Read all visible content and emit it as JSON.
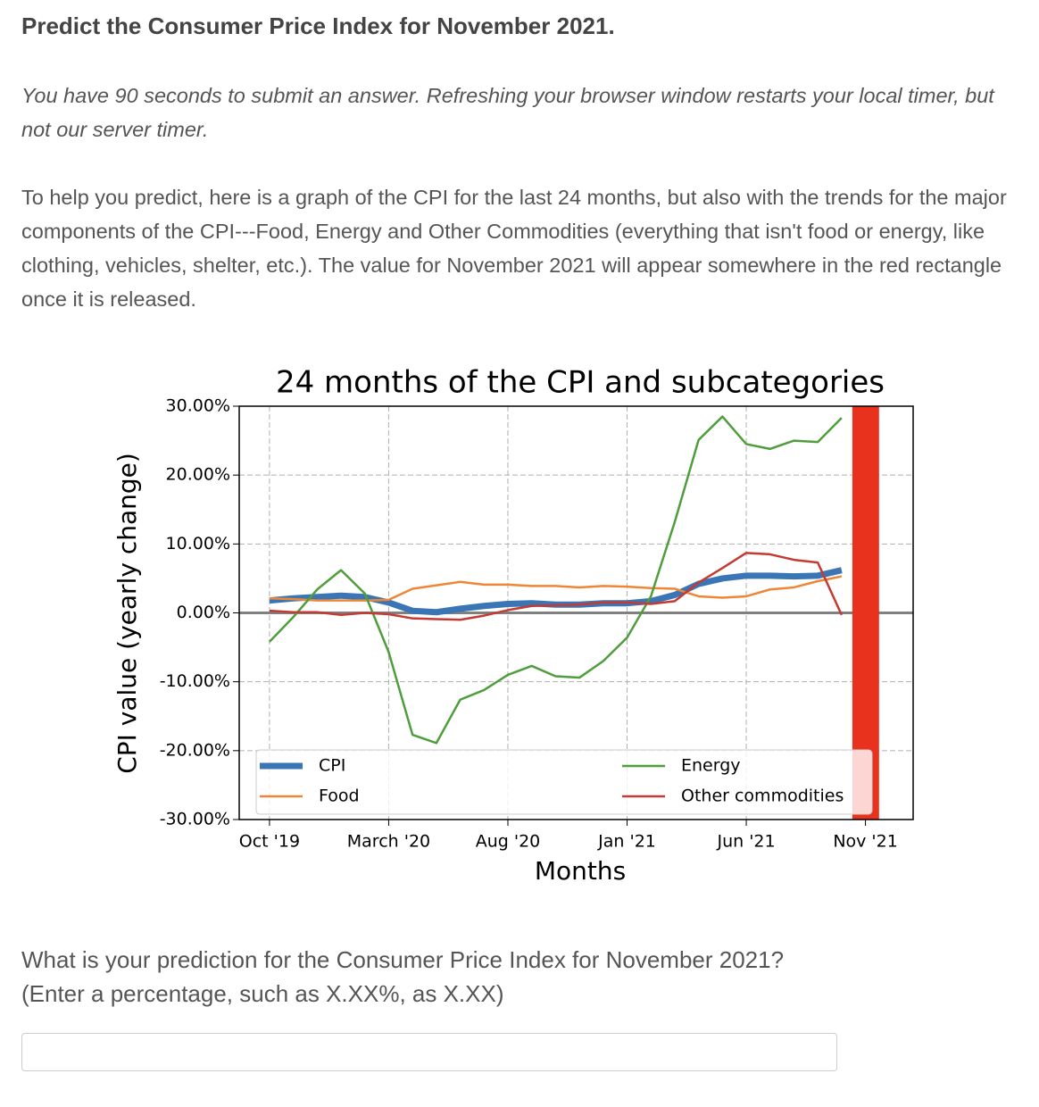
{
  "header": {
    "title": "Predict the Consumer Price Index for November 2021."
  },
  "instructions": "You have 90 seconds to submit an answer. Refreshing your browser window restarts your local timer, but not our server timer.",
  "description": "To help you predict, here is a graph of the CPI for the last 24 months, but also with the trends for the major components of the CPI---Food, Energy and Other Commodities (everything that isn't food or energy, like clothing, vehicles, shelter, etc.). The value for November 2021 will appear somewhere in the red rectangle once it is released.",
  "question": {
    "line1": "What is your prediction for the Consumer Price Index for November 2021?",
    "line2": "(Enter a percentage, such as X.XX%, as X.XX)"
  },
  "chart_data": {
    "type": "line",
    "title": "24 months of the CPI and subcategories",
    "x_label": "Months",
    "y_label": "CPI value (yearly change)",
    "x": [
      0,
      1,
      2,
      3,
      4,
      5,
      6,
      7,
      8,
      9,
      10,
      11,
      12,
      13,
      14,
      15,
      16,
      17,
      18,
      19,
      20,
      21,
      22,
      23,
      24
    ],
    "xlim": [
      -1.27,
      27
    ],
    "xticks": [
      {
        "value": 0,
        "label": "Oct '19"
      },
      {
        "value": 5,
        "label": "March '20"
      },
      {
        "value": 10,
        "label": "Aug '20"
      },
      {
        "value": 15,
        "label": "Jan '21"
      },
      {
        "value": 20,
        "label": "Jun '21"
      },
      {
        "value": 25,
        "label": "Nov '21"
      }
    ],
    "ylim": [
      -30,
      30
    ],
    "yticks": [
      {
        "value": -30,
        "label": "-30.00%"
      },
      {
        "value": -20,
        "label": "-20.00%"
      },
      {
        "value": -10,
        "label": "-10.00%"
      },
      {
        "value": 0,
        "label": "0.00%"
      },
      {
        "value": 10,
        "label": "10.00%"
      },
      {
        "value": 20,
        "label": "20.00%"
      },
      {
        "value": 30,
        "label": "30.00%"
      }
    ],
    "grid": true,
    "legend": "lower center",
    "highlight": {
      "x": [
        24.45,
        25.57
      ],
      "color": "#e8321e"
    },
    "series": [
      {
        "name": "CPI",
        "color": "#3a75b5",
        "values": [
          1.8,
          2.1,
          2.3,
          2.5,
          2.3,
          1.5,
          0.3,
          0.1,
          0.6,
          1.0,
          1.3,
          1.4,
          1.2,
          1.2,
          1.4,
          1.4,
          1.7,
          2.6,
          4.2,
          5.0,
          5.4,
          5.4,
          5.3,
          5.4,
          6.2
        ]
      },
      {
        "name": "Food",
        "color": "#ef8636",
        "values": [
          2.1,
          2.0,
          1.8,
          1.8,
          1.8,
          1.9,
          3.5,
          4.0,
          4.5,
          4.1,
          4.1,
          3.9,
          3.9,
          3.7,
          3.9,
          3.8,
          3.6,
          3.5,
          2.4,
          2.2,
          2.4,
          3.4,
          3.7,
          4.6,
          5.3
        ]
      },
      {
        "name": "Energy",
        "color": "#4f9d3c",
        "values": [
          -4.2,
          -0.6,
          3.4,
          6.2,
          2.8,
          -5.7,
          -17.7,
          -18.9,
          -12.6,
          -11.2,
          -9.0,
          -7.7,
          -9.2,
          -9.4,
          -7.0,
          -3.6,
          2.4,
          13.2,
          25.1,
          28.5,
          24.5,
          23.8,
          25.0,
          24.8,
          28.3
        ]
      },
      {
        "name": "Other commodities",
        "color": "#c53a32",
        "values": [
          0.3,
          0.1,
          0.1,
          -0.3,
          0.0,
          -0.2,
          -0.8,
          -0.9,
          -1.0,
          -0.4,
          0.4,
          1.0,
          1.1,
          1.2,
          1.5,
          1.5,
          1.3,
          1.7,
          4.4,
          6.5,
          8.7,
          8.5,
          7.7,
          7.3,
          -0.3
        ]
      }
    ]
  }
}
